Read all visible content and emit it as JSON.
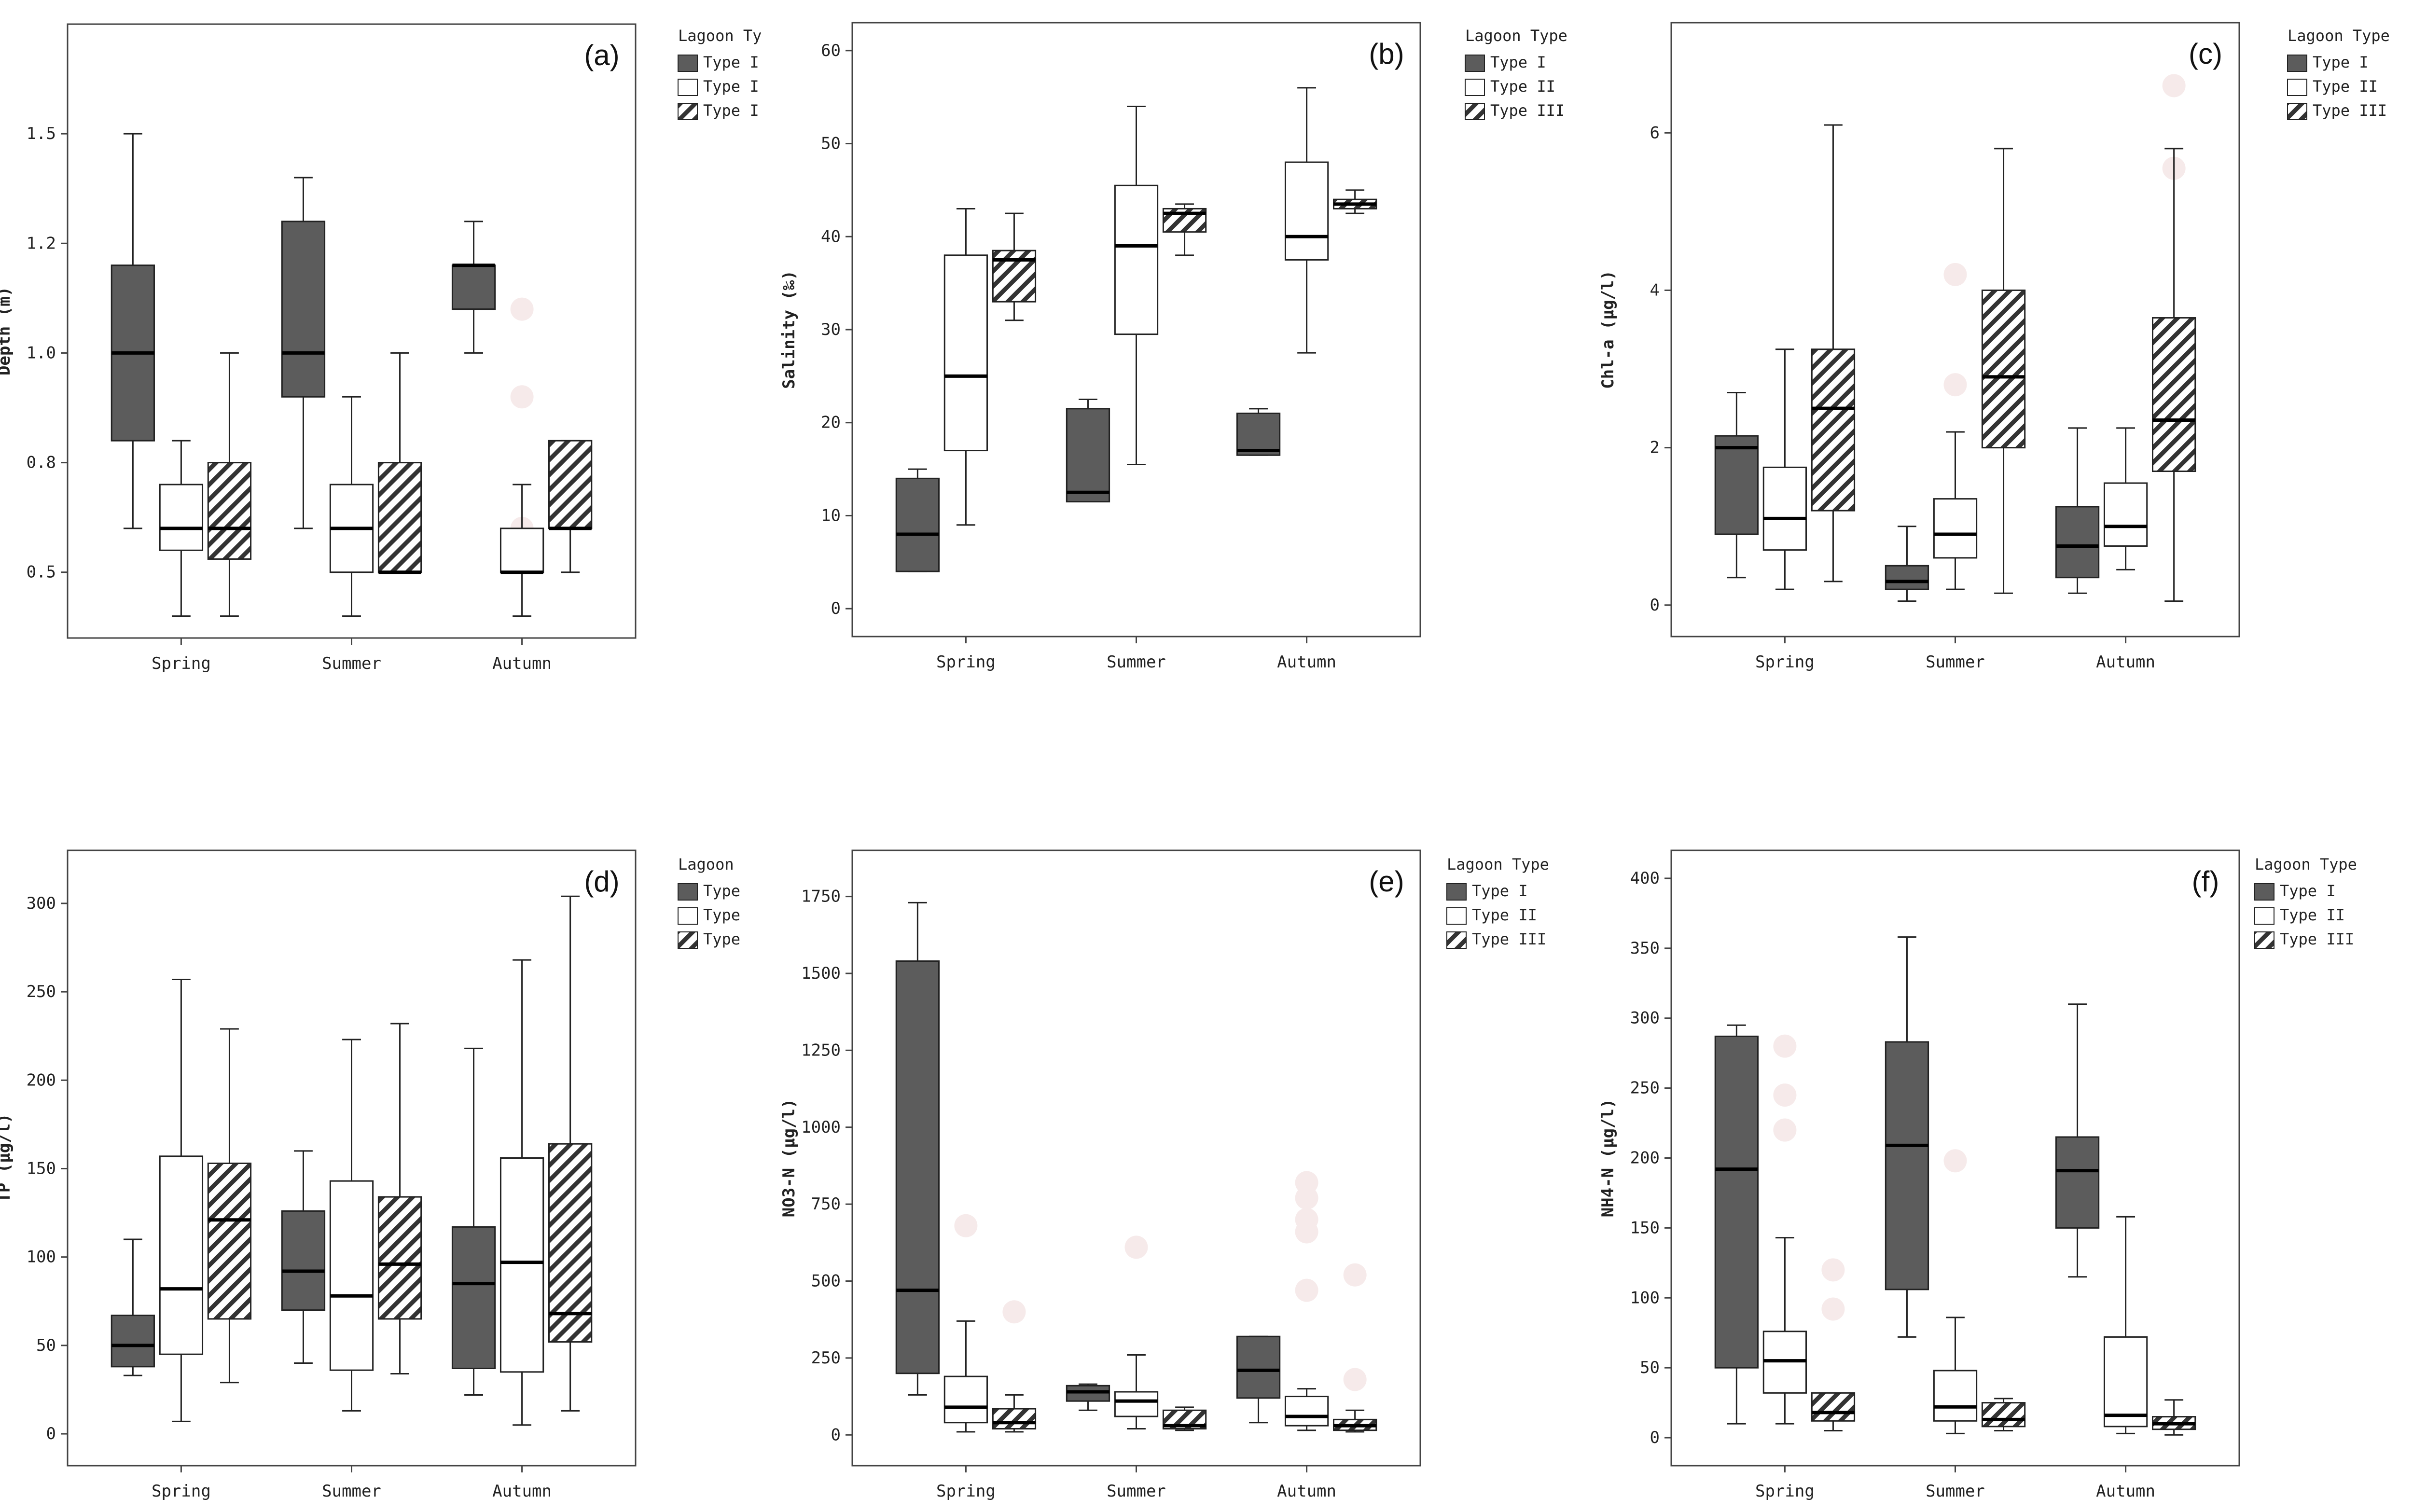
{
  "colors": {
    "type1": "#5c5c5c",
    "type2": "#ffffff",
    "type3_hatch": "#333333",
    "outlier": "#f6eaea",
    "axis": "#444444"
  },
  "chart_data": [
    {
      "type": "box",
      "tag": "(a)",
      "ylabel": "Depth (m)",
      "ylim": [
        0.35,
        1.75
      ],
      "yticks": [
        {
          "v": 0.5,
          "label": "0.5"
        },
        {
          "v": 0.75,
          "label": "0.8"
        },
        {
          "v": 1.0,
          "label": "1.0"
        },
        {
          "v": 1.25,
          "label": "1.2"
        },
        {
          "v": 1.5,
          "label": "1.5"
        }
      ],
      "categories": [
        "Spring",
        "Summer",
        "Autumn"
      ],
      "legend": {
        "title": "Lagoon Ty",
        "entries": [
          "Type I",
          "Type I",
          "Type I"
        ]
      },
      "series": [
        {
          "name": "Type I",
          "style": "dark",
          "boxes": [
            {
              "min": 0.6,
              "q1": 0.8,
              "median": 1.0,
              "q3": 1.2,
              "max": 1.5,
              "outliers": []
            },
            {
              "min": 0.6,
              "q1": 0.9,
              "median": 1.0,
              "q3": 1.3,
              "max": 1.4,
              "outliers": []
            },
            {
              "min": 1.0,
              "q1": 1.1,
              "median": 1.2,
              "q3": 1.2,
              "max": 1.3,
              "outliers": []
            }
          ]
        },
        {
          "name": "Type II",
          "style": "white",
          "boxes": [
            {
              "min": 0.4,
              "q1": 0.55,
              "median": 0.6,
              "q3": 0.7,
              "max": 0.8,
              "outliers": []
            },
            {
              "min": 0.4,
              "q1": 0.5,
              "median": 0.6,
              "q3": 0.7,
              "max": 0.9,
              "outliers": []
            },
            {
              "min": 0.4,
              "q1": 0.5,
              "median": 0.5,
              "q3": 0.6,
              "max": 0.7,
              "outliers": [
                0.6,
                1.1,
                0.9
              ]
            }
          ]
        },
        {
          "name": "Type III",
          "style": "hatch",
          "boxes": [
            {
              "min": 0.4,
              "q1": 0.53,
              "median": 0.6,
              "q3": 0.75,
              "max": 1.0,
              "outliers": []
            },
            {
              "min": 0.5,
              "q1": 0.5,
              "median": 0.5,
              "q3": 0.75,
              "max": 1.0,
              "outliers": []
            },
            {
              "min": 0.5,
              "q1": 0.6,
              "median": 0.6,
              "q3": 0.8,
              "max": 0.8,
              "outliers": []
            }
          ]
        }
      ]
    },
    {
      "type": "box",
      "tag": "(b)",
      "ylabel": "Salinity (‰)",
      "ylim": [
        -3,
        63
      ],
      "yticks": [
        {
          "v": 0,
          "label": "0"
        },
        {
          "v": 10,
          "label": "10"
        },
        {
          "v": 20,
          "label": "20"
        },
        {
          "v": 30,
          "label": "30"
        },
        {
          "v": 40,
          "label": "40"
        },
        {
          "v": 50,
          "label": "50"
        },
        {
          "v": 60,
          "label": "60"
        }
      ],
      "categories": [
        "Spring",
        "Summer",
        "Autumn"
      ],
      "legend": {
        "title": "Lagoon Type",
        "entries": [
          "Type I",
          "Type II",
          "Type III"
        ]
      },
      "series": [
        {
          "name": "Type I",
          "style": "dark",
          "boxes": [
            {
              "min": 4,
              "q1": 4,
              "median": 8,
              "q3": 14,
              "max": 15,
              "outliers": []
            },
            {
              "min": 11.5,
              "q1": 11.5,
              "median": 12.5,
              "q3": 21.5,
              "max": 22.5,
              "outliers": []
            },
            {
              "min": 16.5,
              "q1": 16.5,
              "median": 17,
              "q3": 21,
              "max": 21.5,
              "outliers": []
            }
          ]
        },
        {
          "name": "Type II",
          "style": "white",
          "boxes": [
            {
              "min": 9,
              "q1": 17,
              "median": 25,
              "q3": 38,
              "max": 43,
              "outliers": []
            },
            {
              "min": 15.5,
              "q1": 29.5,
              "median": 39,
              "q3": 45.5,
              "max": 54,
              "outliers": []
            },
            {
              "min": 27.5,
              "q1": 37.5,
              "median": 40,
              "q3": 48,
              "max": 56,
              "outliers": []
            }
          ]
        },
        {
          "name": "Type III",
          "style": "hatch",
          "boxes": [
            {
              "min": 31,
              "q1": 33,
              "median": 37.5,
              "q3": 38.5,
              "max": 42.5,
              "outliers": []
            },
            {
              "min": 38,
              "q1": 40.5,
              "median": 42.5,
              "q3": 43,
              "max": 43.5,
              "outliers": []
            },
            {
              "min": 42.5,
              "q1": 43,
              "median": 43.5,
              "q3": 44,
              "max": 45,
              "outliers": []
            }
          ]
        }
      ]
    },
    {
      "type": "box",
      "tag": "(c)",
      "ylabel": "Chl-a (μg/l)",
      "ylim": [
        -0.4,
        7.4
      ],
      "yticks": [
        {
          "v": 0,
          "label": "0"
        },
        {
          "v": 2,
          "label": "2"
        },
        {
          "v": 4,
          "label": "4"
        },
        {
          "v": 6,
          "label": "6"
        }
      ],
      "categories": [
        "Spring",
        "Summer",
        "Autumn"
      ],
      "legend": {
        "title": "Lagoon Type",
        "entries": [
          "Type I",
          "Type II",
          "Type III"
        ]
      },
      "series": [
        {
          "name": "Type I",
          "style": "dark",
          "boxes": [
            {
              "min": 0.35,
              "q1": 0.9,
              "median": 2.0,
              "q3": 2.15,
              "max": 2.7,
              "outliers": []
            },
            {
              "min": 0.05,
              "q1": 0.2,
              "median": 0.3,
              "q3": 0.5,
              "max": 1.0,
              "outliers": []
            },
            {
              "min": 0.15,
              "q1": 0.35,
              "median": 0.75,
              "q3": 1.25,
              "max": 2.25,
              "outliers": []
            }
          ]
        },
        {
          "name": "Type II",
          "style": "white",
          "boxes": [
            {
              "min": 0.2,
              "q1": 0.7,
              "median": 1.1,
              "q3": 1.75,
              "max": 3.25,
              "outliers": []
            },
            {
              "min": 0.2,
              "q1": 0.6,
              "median": 0.9,
              "q3": 1.35,
              "max": 2.2,
              "outliers": [
                2.8,
                4.2
              ]
            },
            {
              "min": 0.45,
              "q1": 0.75,
              "median": 1.0,
              "q3": 1.55,
              "max": 2.25,
              "outliers": []
            }
          ]
        },
        {
          "name": "Type III",
          "style": "hatch",
          "boxes": [
            {
              "min": 0.3,
              "q1": 1.2,
              "median": 2.5,
              "q3": 3.25,
              "max": 6.1,
              "outliers": []
            },
            {
              "min": 0.15,
              "q1": 2.0,
              "median": 2.9,
              "q3": 4.0,
              "max": 5.8,
              "outliers": []
            },
            {
              "min": 0.05,
              "q1": 1.7,
              "median": 2.35,
              "q3": 3.65,
              "max": 5.8,
              "outliers": [
                6.6,
                5.55
              ]
            }
          ]
        }
      ]
    },
    {
      "type": "box",
      "tag": "(d)",
      "ylabel": "TP (μg/l)",
      "ylim": [
        -18,
        330
      ],
      "yticks": [
        {
          "v": 0,
          "label": "0"
        },
        {
          "v": 50,
          "label": "50"
        },
        {
          "v": 100,
          "label": "100"
        },
        {
          "v": 150,
          "label": "150"
        },
        {
          "v": 200,
          "label": "200"
        },
        {
          "v": 250,
          "label": "250"
        },
        {
          "v": 300,
          "label": "300"
        }
      ],
      "categories": [
        "Spring",
        "Summer",
        "Autumn"
      ],
      "legend": {
        "title": "Lagoon",
        "entries": [
          "Type",
          "Type",
          "Type"
        ]
      },
      "series": [
        {
          "name": "Type I",
          "style": "dark",
          "boxes": [
            {
              "min": 33,
              "q1": 38,
              "median": 50,
              "q3": 67,
              "max": 110,
              "outliers": []
            },
            {
              "min": 40,
              "q1": 70,
              "median": 92,
              "q3": 126,
              "max": 160,
              "outliers": []
            },
            {
              "min": 22,
              "q1": 37,
              "median": 85,
              "q3": 117,
              "max": 218,
              "outliers": []
            }
          ]
        },
        {
          "name": "Type II",
          "style": "white",
          "boxes": [
            {
              "min": 7,
              "q1": 45,
              "median": 82,
              "q3": 157,
              "max": 257,
              "outliers": []
            },
            {
              "min": 13,
              "q1": 36,
              "median": 78,
              "q3": 143,
              "max": 223,
              "outliers": []
            },
            {
              "min": 5,
              "q1": 35,
              "median": 97,
              "q3": 156,
              "max": 268,
              "outliers": []
            }
          ]
        },
        {
          "name": "Type III",
          "style": "hatch",
          "boxes": [
            {
              "min": 29,
              "q1": 65,
              "median": 121,
              "q3": 153,
              "max": 229,
              "outliers": []
            },
            {
              "min": 34,
              "q1": 65,
              "median": 96,
              "q3": 134,
              "max": 232,
              "outliers": []
            },
            {
              "min": 13,
              "q1": 52,
              "median": 68,
              "q3": 164,
              "max": 304,
              "outliers": []
            }
          ]
        }
      ]
    },
    {
      "type": "box",
      "tag": "(e)",
      "ylabel": "NO3-N (μg/l)",
      "ylim": [
        -100,
        1900
      ],
      "yticks": [
        {
          "v": 0,
          "label": "0"
        },
        {
          "v": 250,
          "label": "250"
        },
        {
          "v": 500,
          "label": "500"
        },
        {
          "v": 750,
          "label": "750"
        },
        {
          "v": 1000,
          "label": "1000"
        },
        {
          "v": 1250,
          "label": "1250"
        },
        {
          "v": 1500,
          "label": "1500"
        },
        {
          "v": 1750,
          "label": "1750"
        }
      ],
      "categories": [
        "Spring",
        "Summer",
        "Autumn"
      ],
      "legend": {
        "title": "Lagoon Type",
        "entries": [
          "Type I",
          "Type II",
          "Type III"
        ]
      },
      "series": [
        {
          "name": "Type I",
          "style": "dark",
          "boxes": [
            {
              "min": 130,
              "q1": 200,
              "median": 470,
              "q3": 1540,
              "max": 1730,
              "outliers": []
            },
            {
              "min": 80,
              "q1": 110,
              "median": 140,
              "q3": 160,
              "max": 165,
              "outliers": []
            },
            {
              "min": 40,
              "q1": 120,
              "median": 210,
              "q3": 320,
              "max": 320,
              "outliers": []
            }
          ]
        },
        {
          "name": "Type II",
          "style": "white",
          "boxes": [
            {
              "min": 10,
              "q1": 40,
              "median": 90,
              "q3": 190,
              "max": 370,
              "outliers": [
                680
              ]
            },
            {
              "min": 20,
              "q1": 60,
              "median": 110,
              "q3": 140,
              "max": 260,
              "outliers": [
                610
              ]
            },
            {
              "min": 15,
              "q1": 30,
              "median": 60,
              "q3": 125,
              "max": 150,
              "outliers": [
                470,
                820,
                770,
                700,
                660
              ]
            }
          ]
        },
        {
          "name": "Type III",
          "style": "hatch",
          "boxes": [
            {
              "min": 10,
              "q1": 20,
              "median": 40,
              "q3": 85,
              "max": 130,
              "outliers": [
                400
              ]
            },
            {
              "min": 15,
              "q1": 20,
              "median": 30,
              "q3": 80,
              "max": 90,
              "outliers": []
            },
            {
              "min": 10,
              "q1": 15,
              "median": 30,
              "q3": 50,
              "max": 80,
              "outliers": [
                520,
                180
              ]
            }
          ]
        }
      ]
    },
    {
      "type": "box",
      "tag": "(f)",
      "ylabel": "NH4-N (μg/l)",
      "ylim": [
        -20,
        420
      ],
      "yticks": [
        {
          "v": 0,
          "label": "0"
        },
        {
          "v": 50,
          "label": "50"
        },
        {
          "v": 100,
          "label": "100"
        },
        {
          "v": 150,
          "label": "150"
        },
        {
          "v": 200,
          "label": "200"
        },
        {
          "v": 250,
          "label": "250"
        },
        {
          "v": 300,
          "label": "300"
        },
        {
          "v": 350,
          "label": "350"
        },
        {
          "v": 400,
          "label": "400"
        }
      ],
      "categories": [
        "Spring",
        "Summer",
        "Autumn"
      ],
      "legend": {
        "title": "Lagoon Type",
        "entries": [
          "Type I",
          "Type II",
          "Type III"
        ]
      },
      "series": [
        {
          "name": "Type I",
          "style": "dark",
          "boxes": [
            {
              "min": 10,
              "q1": 50,
              "median": 192,
              "q3": 287,
              "max": 295,
              "outliers": []
            },
            {
              "min": 72,
              "q1": 106,
              "median": 209,
              "q3": 283,
              "max": 358,
              "outliers": []
            },
            {
              "min": 115,
              "q1": 150,
              "median": 191,
              "q3": 215,
              "max": 310,
              "outliers": []
            }
          ]
        },
        {
          "name": "Type II",
          "style": "white",
          "boxes": [
            {
              "min": 10,
              "q1": 32,
              "median": 55,
              "q3": 76,
              "max": 143,
              "outliers": [
                280,
                245,
                220
              ]
            },
            {
              "min": 3,
              "q1": 12,
              "median": 22,
              "q3": 48,
              "max": 86,
              "outliers": [
                198
              ]
            },
            {
              "min": 3,
              "q1": 8,
              "median": 16,
              "q3": 72,
              "max": 158,
              "outliers": []
            }
          ]
        },
        {
          "name": "Type III",
          "style": "hatch",
          "boxes": [
            {
              "min": 5,
              "q1": 12,
              "median": 18,
              "q3": 32,
              "max": 32,
              "outliers": [
                120,
                92
              ]
            },
            {
              "min": 5,
              "q1": 8,
              "median": 13,
              "q3": 25,
              "max": 28,
              "outliers": []
            },
            {
              "min": 2,
              "q1": 6,
              "median": 10,
              "q3": 15,
              "max": 27,
              "outliers": []
            }
          ]
        }
      ]
    }
  ]
}
